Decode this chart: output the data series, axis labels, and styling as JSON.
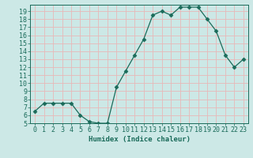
{
  "x": [
    0,
    1,
    2,
    3,
    4,
    5,
    6,
    7,
    8,
    9,
    10,
    11,
    12,
    13,
    14,
    15,
    16,
    17,
    18,
    19,
    20,
    21,
    22,
    23
  ],
  "y": [
    6.5,
    7.5,
    7.5,
    7.5,
    7.5,
    6.0,
    5.2,
    5.0,
    5.0,
    9.5,
    11.5,
    13.5,
    15.5,
    18.5,
    19.0,
    18.5,
    19.5,
    19.5,
    19.5,
    18.0,
    16.5,
    13.5,
    12.0,
    13.0
  ],
  "xlabel": "Humidex (Indice chaleur)",
  "line_color": "#1a6b5a",
  "marker": "D",
  "marker_size": 2.5,
  "bg_color": "#cce8e6",
  "grid_color": "#e8b8b8",
  "xlim": [
    -0.5,
    23.5
  ],
  "ylim": [
    5,
    19.8
  ],
  "yticks": [
    5,
    6,
    7,
    8,
    9,
    10,
    11,
    12,
    13,
    14,
    15,
    16,
    17,
    18,
    19
  ],
  "xticks": [
    0,
    1,
    2,
    3,
    4,
    5,
    6,
    7,
    8,
    9,
    10,
    11,
    12,
    13,
    14,
    15,
    16,
    17,
    18,
    19,
    20,
    21,
    22,
    23
  ],
  "tick_color": "#1a6b5a",
  "label_color": "#1a6b5a",
  "font_size": 6.5
}
